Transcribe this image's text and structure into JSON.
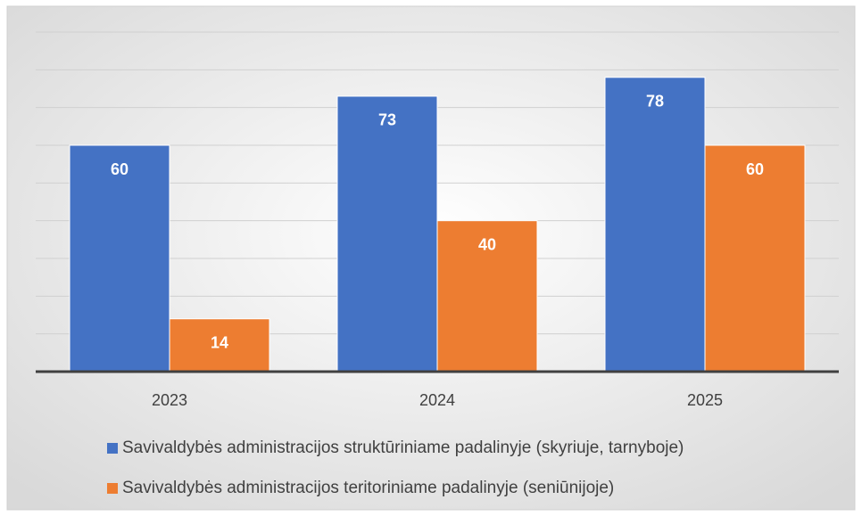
{
  "chart_data": {
    "type": "bar",
    "categories": [
      "2023",
      "2024",
      "2025"
    ],
    "series": [
      {
        "name": "Savivaldybės administracijos struktūriniame padalinyje (skyriuje, tarnyboje)",
        "color": "#4472c4",
        "values": [
          60,
          73,
          78
        ]
      },
      {
        "name": "Savivaldybės administracijos teritoriniame padalinyje (seniūnijoje)",
        "color": "#ed7d31",
        "values": [
          14,
          40,
          60
        ]
      }
    ],
    "ylim": [
      0,
      90
    ],
    "yticks": [
      0,
      10,
      20,
      30,
      40,
      50,
      60,
      70,
      80,
      90
    ],
    "grid": true,
    "legend": "bottom"
  }
}
